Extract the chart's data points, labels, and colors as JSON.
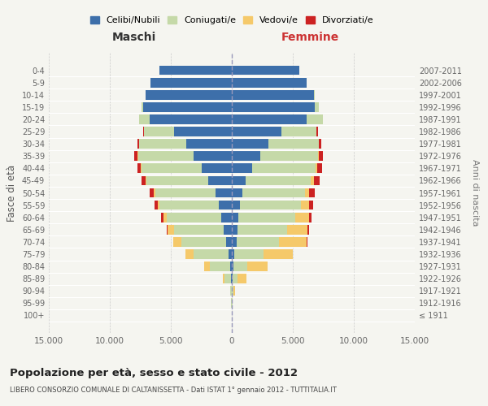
{
  "age_groups": [
    "100+",
    "95-99",
    "90-94",
    "85-89",
    "80-84",
    "75-79",
    "70-74",
    "65-69",
    "60-64",
    "55-59",
    "50-54",
    "45-49",
    "40-44",
    "35-39",
    "30-34",
    "25-29",
    "20-24",
    "15-19",
    "10-14",
    "5-9",
    "0-4"
  ],
  "birth_years": [
    "≤ 1911",
    "1912-1916",
    "1917-1921",
    "1922-1926",
    "1927-1931",
    "1932-1936",
    "1937-1941",
    "1942-1946",
    "1947-1951",
    "1952-1956",
    "1957-1961",
    "1962-1966",
    "1967-1971",
    "1972-1976",
    "1977-1981",
    "1982-1986",
    "1987-1991",
    "1992-1996",
    "1997-2001",
    "2002-2006",
    "2007-2011"
  ],
  "males": {
    "celibi": [
      10,
      15,
      25,
      70,
      140,
      280,
      480,
      670,
      870,
      1070,
      1350,
      1950,
      2450,
      3150,
      3750,
      4750,
      6750,
      7250,
      7050,
      6650,
      5950
    ],
    "coniugati": [
      4,
      22,
      85,
      520,
      1650,
      2850,
      3650,
      4050,
      4450,
      4850,
      4950,
      5050,
      4950,
      4550,
      3850,
      2450,
      820,
      170,
      38,
      7,
      3
    ],
    "vedovi": [
      2,
      8,
      42,
      170,
      460,
      660,
      660,
      560,
      310,
      170,
      100,
      65,
      42,
      22,
      10,
      7,
      3,
      2,
      0,
      0,
      0
    ],
    "divorziati": [
      0,
      0,
      2,
      5,
      12,
      23,
      42,
      72,
      180,
      265,
      315,
      360,
      315,
      265,
      135,
      52,
      16,
      3,
      0,
      0,
      0
    ]
  },
  "females": {
    "nubili": [
      8,
      14,
      33,
      68,
      138,
      225,
      372,
      462,
      558,
      656,
      854,
      1148,
      1640,
      2320,
      2990,
      4070,
      6130,
      6820,
      6720,
      6130,
      5540
    ],
    "coniugate": [
      4,
      23,
      68,
      370,
      1120,
      2390,
      3470,
      4060,
      4650,
      5040,
      5135,
      5330,
      5230,
      4740,
      4140,
      2880,
      1320,
      320,
      68,
      11,
      4
    ],
    "vedove": [
      4,
      26,
      175,
      730,
      1690,
      2380,
      2280,
      1700,
      1110,
      655,
      365,
      225,
      132,
      65,
      32,
      16,
      8,
      4,
      2,
      0,
      0
    ],
    "divorziate": [
      0,
      0,
      2,
      7,
      17,
      36,
      72,
      92,
      230,
      325,
      420,
      470,
      368,
      325,
      182,
      70,
      26,
      8,
      0,
      0,
      0
    ]
  },
  "colors": {
    "celibi": "#3d6faa",
    "coniugati": "#c5d9a8",
    "vedovi": "#f5c96a",
    "divorziati": "#cc2222"
  },
  "xlim": 15000,
  "title": "Popolazione per età, sesso e stato civile - 2012",
  "subtitle": "LIBERO CONSORZIO COMUNALE DI CALTANISSETTA - Dati ISTAT 1° gennaio 2012 - TUTTITALIA.IT",
  "ylabel": "Fasce di età",
  "ylabel_right": "Anni di nascita",
  "xlabel_left": "Maschi",
  "xlabel_right": "Femmine",
  "legend_labels": [
    "Celibi/Nubili",
    "Coniugati/e",
    "Vedovi/e",
    "Divorziati/e"
  ],
  "bg_color": "#f5f5f0",
  "maschi_color": "#333333",
  "femmine_color": "#cc3333",
  "tick_labels": [
    "15.000",
    "10.000",
    "5.000",
    "0",
    "5.000",
    "10.000",
    "15.000"
  ]
}
